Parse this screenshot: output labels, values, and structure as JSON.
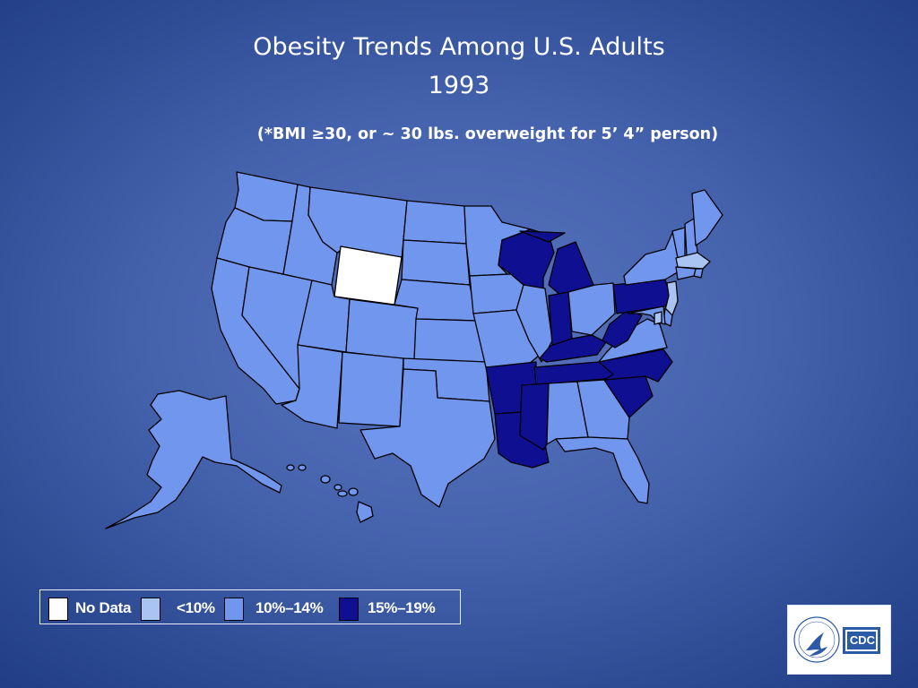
{
  "title_line1": "Obesity Trends Among U.S. Adults",
  "title_line2": "1993",
  "subtitle": "(*BMI ≥30, or ~ 30 lbs. overweight for 5’ 4” person)",
  "colors": {
    "no_data": "#ffffff",
    "lt10": "#a9c4f2",
    "p10_14": "#7196ee",
    "p15_19": "#0f1091"
  },
  "legend": [
    {
      "label": "No Data",
      "category": "no_data"
    },
    {
      "label": "<10%",
      "category": "lt10"
    },
    {
      "label": "10%–14%",
      "category": "p10_14"
    },
    {
      "label": "15%–19%",
      "category": "p15_19"
    }
  ],
  "states": {
    "WA": "p10_14",
    "OR": "p10_14",
    "CA": "p10_14",
    "NV": "p10_14",
    "ID": "p10_14",
    "MT": "p10_14",
    "WY": "no_data",
    "UT": "p10_14",
    "CO": "p10_14",
    "AZ": "p10_14",
    "NM": "p10_14",
    "ND": "p10_14",
    "SD": "p10_14",
    "NE": "p10_14",
    "KS": "p10_14",
    "OK": "p10_14",
    "TX": "p10_14",
    "MN": "p10_14",
    "IA": "p10_14",
    "MO": "p10_14",
    "AR": "p15_19",
    "LA": "p15_19",
    "WI": "p15_19",
    "IL": "p10_14",
    "MI": "p15_19",
    "IN": "p15_19",
    "OH": "p10_14",
    "KY": "p15_19",
    "TN": "p15_19",
    "MS": "p15_19",
    "AL": "p10_14",
    "GA": "p10_14",
    "FL": "p10_14",
    "SC": "p15_19",
    "NC": "p15_19",
    "VA": "p10_14",
    "WV": "p15_19",
    "PA": "p15_19",
    "NY": "p10_14",
    "VT": "p10_14",
    "NH": "p10_14",
    "ME": "p10_14",
    "MA": "lt10",
    "RI": "p10_14",
    "CT": "p10_14",
    "NJ": "lt10",
    "DE": "p10_14",
    "MD": "p10_14",
    "DC": "lt10",
    "AK": "p10_14",
    "HI": "p10_14"
  },
  "logo_text": "CDC"
}
